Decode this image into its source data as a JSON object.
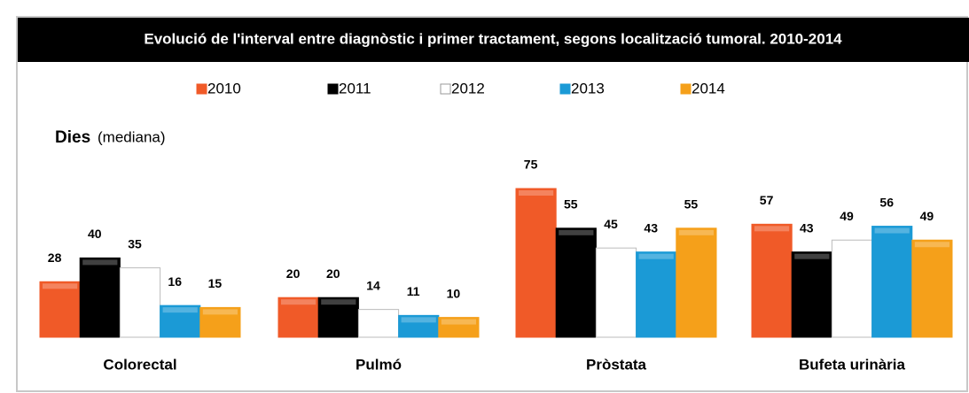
{
  "chart_data": {
    "type": "bar",
    "title": "Evolució de l'interval entre diagnòstic i primer tractament, segons localització tumoral. 2010-2014",
    "y_label": "Dies",
    "y_label_note": "(mediana)",
    "categories": [
      "Colorectal",
      "Pulmó",
      "Pròstata",
      "Bufeta urinària"
    ],
    "series": [
      {
        "name": "2010",
        "color": "#f05a28",
        "values": [
          28,
          20,
          75,
          57
        ]
      },
      {
        "name": "2011",
        "color": "#000000",
        "values": [
          40,
          20,
          55,
          43
        ]
      },
      {
        "name": "2012",
        "color": "#ffffff",
        "values": [
          35,
          14,
          45,
          49
        ]
      },
      {
        "name": "2013",
        "color": "#1b9ad6",
        "values": [
          16,
          11,
          43,
          56
        ]
      },
      {
        "name": "2014",
        "color": "#f5a01a",
        "values": [
          15,
          10,
          55,
          49
        ]
      }
    ],
    "legend": "top"
  }
}
